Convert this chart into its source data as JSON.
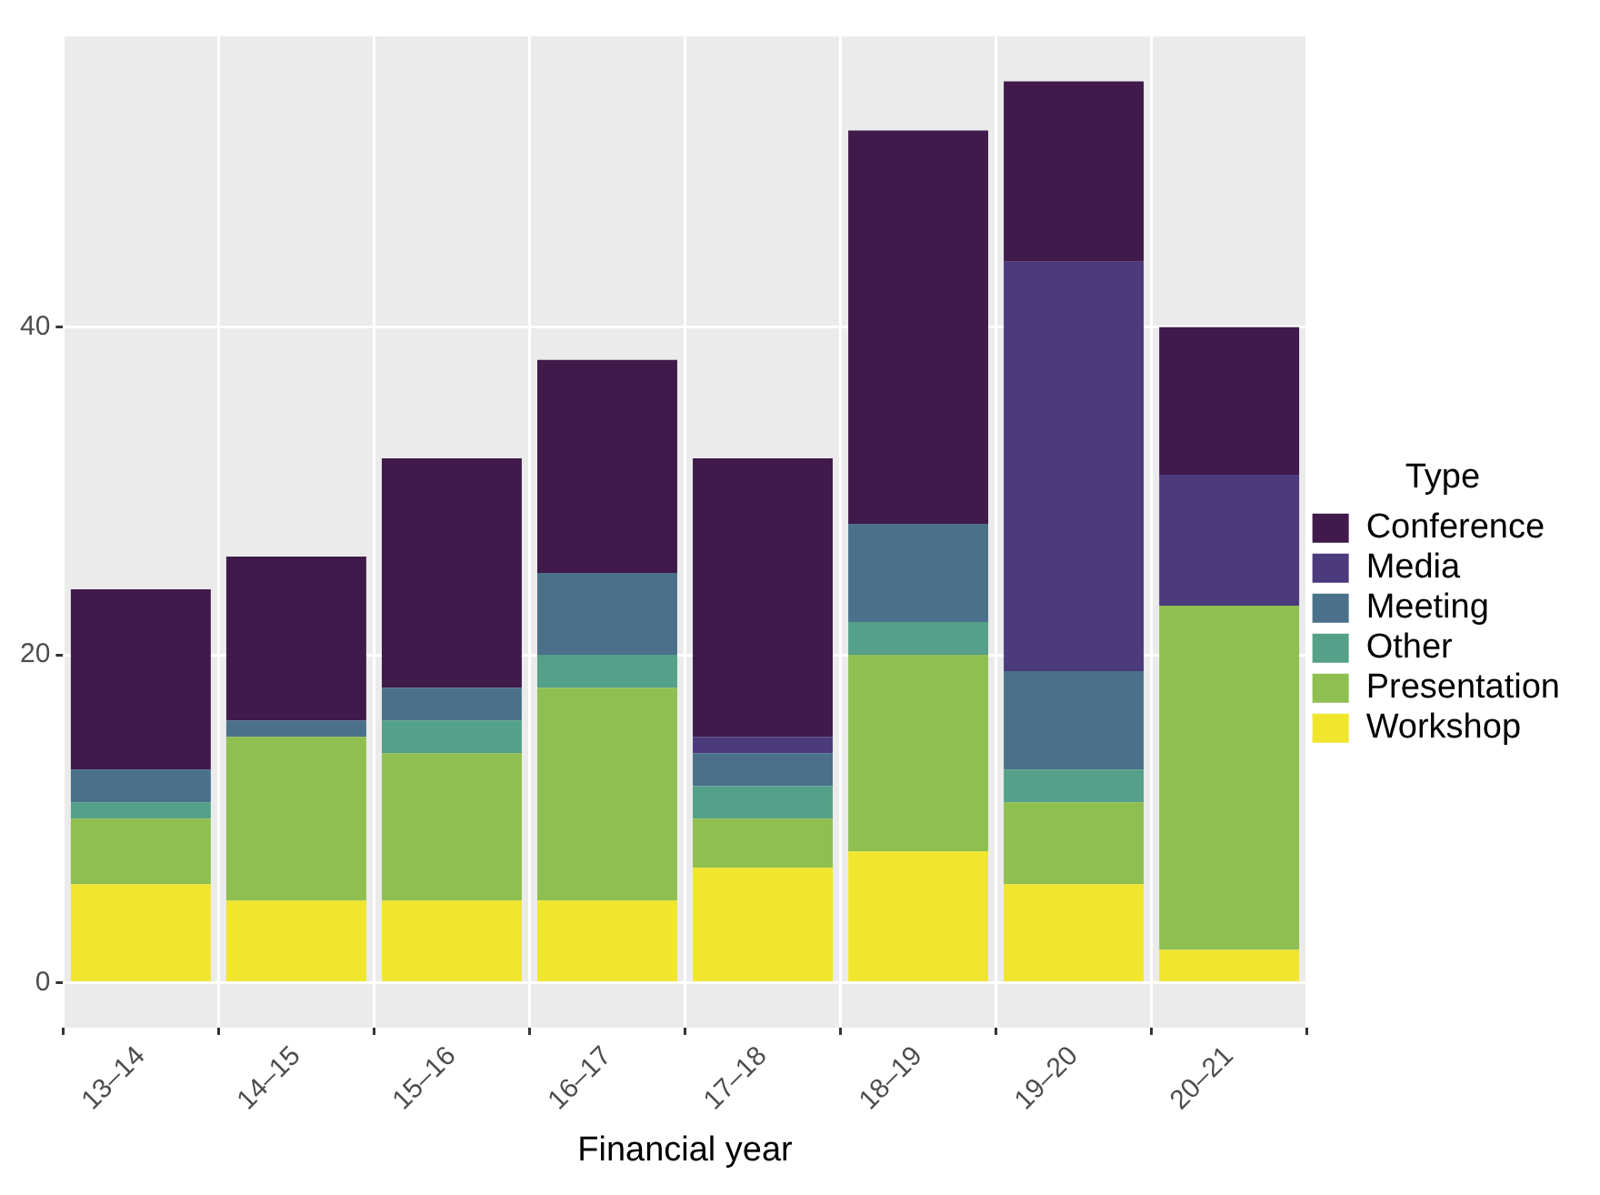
{
  "chart_data": {
    "type": "bar",
    "stacked": true,
    "xlabel": "Financial year",
    "legend_title": "Type",
    "legend": "right",
    "grid": true,
    "categories": [
      "13–14",
      "14–15",
      "15–16",
      "16–17",
      "17–18",
      "18–19",
      "19–20",
      "20–21"
    ],
    "ylim": [
      -2.75,
      57.75
    ],
    "yticks": [
      0,
      20,
      40
    ],
    "series": [
      {
        "name": "Workshop",
        "color": "#f0e62e",
        "values": [
          6,
          5,
          5,
          5,
          7,
          8,
          6,
          2
        ]
      },
      {
        "name": "Presentation",
        "color": "#8fbf50",
        "values": [
          4,
          10,
          9,
          13,
          3,
          12,
          5,
          21
        ]
      },
      {
        "name": "Other",
        "color": "#55a088",
        "values": [
          1,
          0,
          2,
          2,
          2,
          2,
          2,
          0
        ]
      },
      {
        "name": "Meeting",
        "color": "#4a7189",
        "values": [
          2,
          1,
          2,
          5,
          2,
          6,
          6,
          0
        ]
      },
      {
        "name": "Media",
        "color": "#4b3a7c",
        "values": [
          0,
          0,
          0,
          0,
          1,
          0,
          25,
          8
        ]
      },
      {
        "name": "Conference",
        "color": "#3f1a4a",
        "values": [
          11,
          10,
          14,
          13,
          17,
          24,
          11,
          9
        ]
      }
    ]
  }
}
